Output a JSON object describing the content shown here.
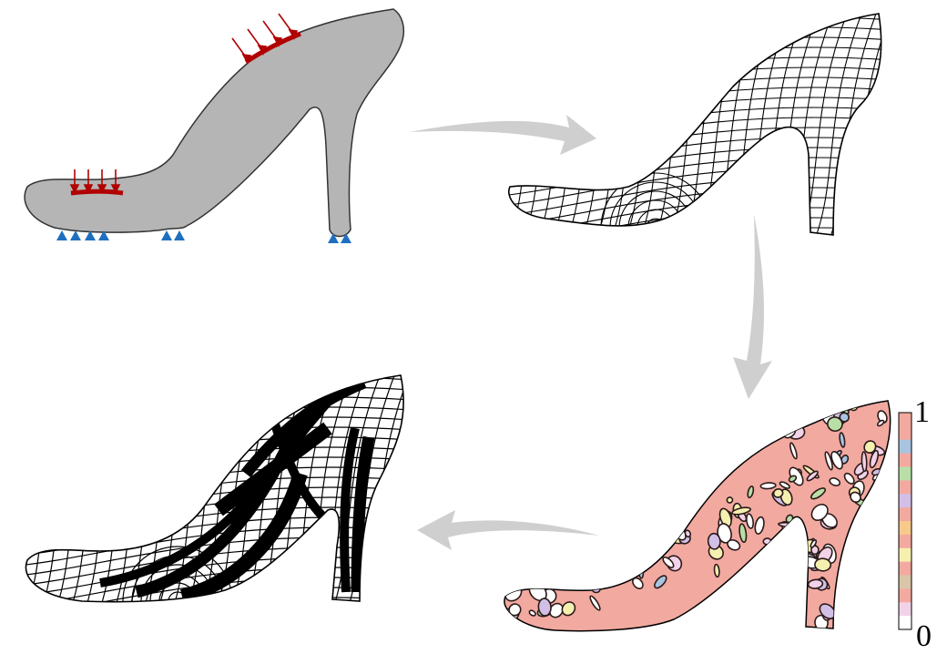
{
  "colorbar": {
    "max_label": "1",
    "min_label": "0",
    "colors": [
      "#f4a9a0",
      "#f4a9a0",
      "#a9c4e0",
      "#f4a9a0",
      "#b8dfa6",
      "#f4a9a0",
      "#d2bfe6",
      "#f4a9a0",
      "#f7c98a",
      "#f4a9a0",
      "#f6f0b0",
      "#f4a9a0",
      "#d9c6a8",
      "#f4a9a0",
      "#f2d2e8",
      "#ffffff"
    ]
  },
  "panels": {
    "input": {
      "fill": "#b5b5b5",
      "load_color": "#b00000",
      "support_color": "#1f6fbf"
    },
    "field": {
      "stroke": "#000000"
    },
    "density": {
      "fill": "#f2a9a0"
    },
    "result": {
      "fill": "#000000"
    }
  },
  "arrow_color": "#cfcfcf"
}
